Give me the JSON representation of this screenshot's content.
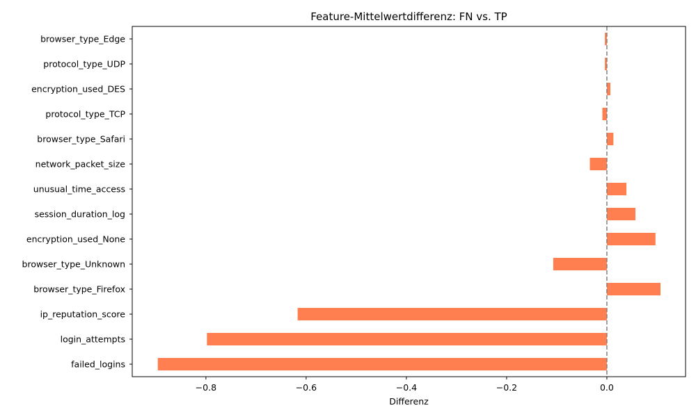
{
  "chart_data": {
    "type": "bar",
    "orientation": "horizontal",
    "title": "Feature-Mittelwertdifferenz: FN vs. TP",
    "xlabel": "Differenz",
    "ylabel": "",
    "categories": [
      "failed_logins",
      "login_attempts",
      "ip_reputation_score",
      "browser_type_Firefox",
      "browser_type_Unknown",
      "encryption_used_None",
      "session_duration_log",
      "unusual_time_access",
      "network_packet_size",
      "browser_type_Safari",
      "protocol_type_TCP",
      "encryption_used_DES",
      "protocol_type_UDP",
      "browser_type_Edge"
    ],
    "values": [
      -0.896,
      -0.798,
      -0.617,
      0.107,
      -0.107,
      0.097,
      0.057,
      0.039,
      -0.034,
      0.013,
      -0.009,
      0.007,
      -0.004,
      -0.004
    ],
    "xlim": [
      -0.947,
      0.157
    ],
    "xticks": [
      -0.8,
      -0.6,
      -0.4,
      -0.2,
      0.0
    ],
    "xtick_labels": [
      "−0.8",
      "−0.6",
      "−0.4",
      "−0.2",
      "0.0"
    ],
    "reference_line": {
      "x": 0.0,
      "style": "dashed",
      "color": "#808080"
    },
    "bar_color": "#ff7f50",
    "grid": false,
    "legend": "none"
  }
}
